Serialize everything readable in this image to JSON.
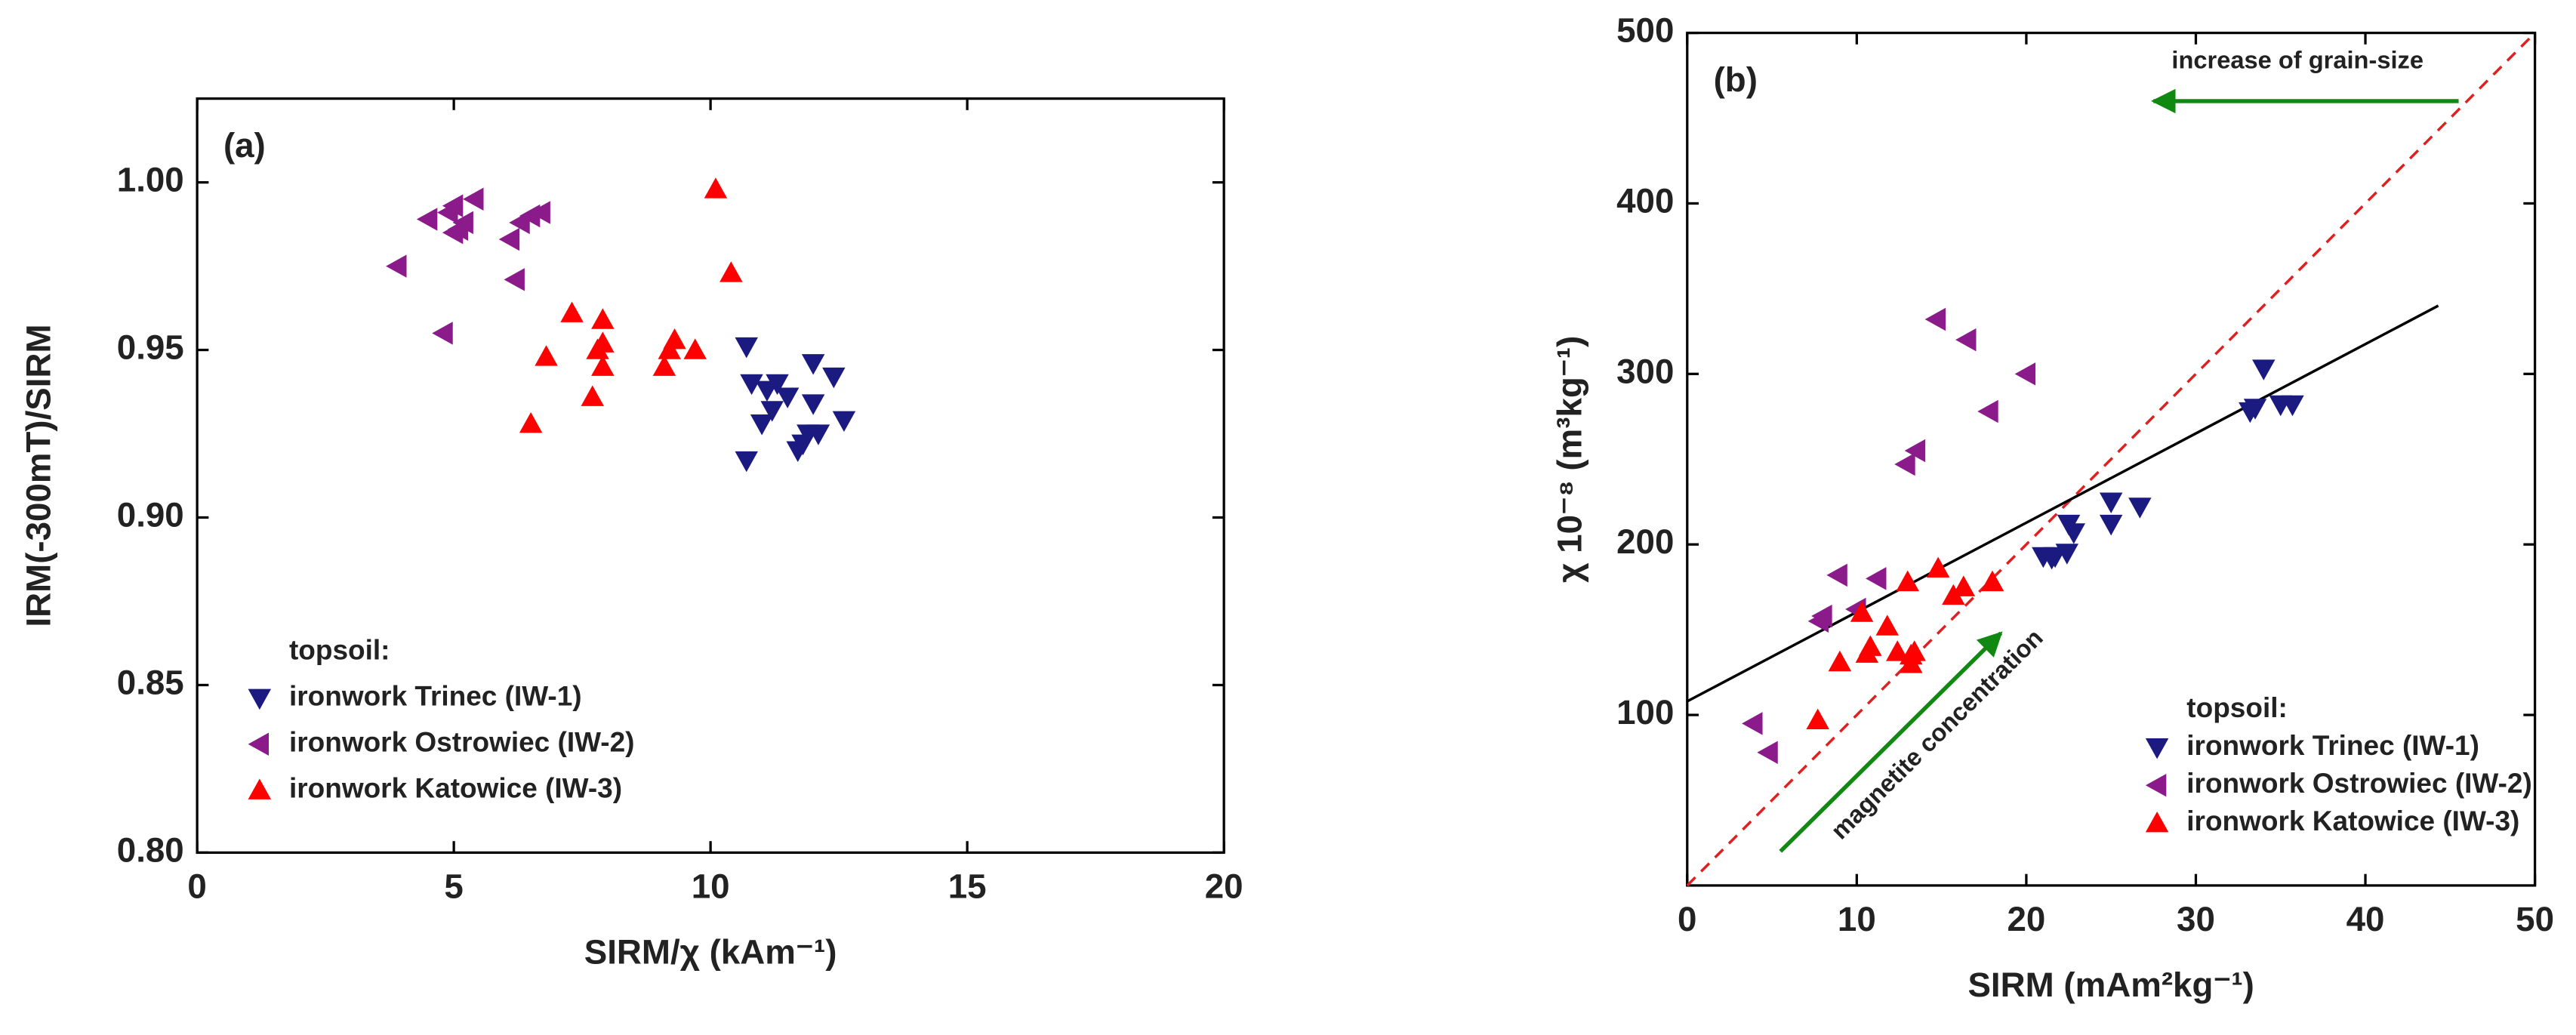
{
  "chart_data": [
    {
      "type": "scatter",
      "panel_label": "(a)",
      "x_label": "SIRM/χ (kAm⁻¹)",
      "y_label": "IRM(-300mT)/SIRM",
      "xlim": [
        0,
        20
      ],
      "ylim": [
        0.8,
        1.025
      ],
      "xticks": [
        0,
        5,
        10,
        15,
        20
      ],
      "yticks": [
        {
          "value": 0.8,
          "label": "0.80"
        },
        {
          "value": 0.85,
          "label": "0.85"
        },
        {
          "value": 0.9,
          "label": "0.90"
        },
        {
          "value": 0.95,
          "label": "0.95"
        },
        {
          "value": 1.0,
          "label": "1.00"
        }
      ],
      "legend_title": "topsoil:",
      "legend": "lower left",
      "series": [
        {
          "name": "ironwork Trinec (IW-1)",
          "color": "#1a1a80",
          "marker": "triangle-down",
          "x": [
            10.7,
            10.8,
            10.7,
            11.1,
            11.2,
            11.3,
            11.5,
            11.0,
            11.8,
            11.9,
            12.0,
            12.0,
            12.4,
            12.6,
            11.7,
            12.1
          ],
          "values": [
            0.951,
            0.94,
            0.917,
            0.938,
            0.932,
            0.94,
            0.936,
            0.928,
            0.922,
            0.925,
            0.946,
            0.934,
            0.942,
            0.929,
            0.92,
            0.925
          ]
        },
        {
          "name": "ironwork Ostrowiec (IW-2)",
          "color": "#8b1a8b",
          "marker": "triangle-left",
          "x": [
            3.9,
            4.5,
            4.8,
            4.9,
            5.0,
            5.1,
            5.2,
            5.4,
            6.1,
            6.2,
            6.3,
            6.5,
            6.7,
            5.0
          ],
          "values": [
            0.975,
            0.989,
            0.955,
            0.991,
            0.993,
            0.986,
            0.988,
            0.995,
            0.983,
            0.971,
            0.988,
            0.99,
            0.991,
            0.985
          ]
        },
        {
          "name": "ironwork Katowice (IW-3)",
          "color": "#ff0000",
          "marker": "triangle-up",
          "x": [
            6.5,
            6.8,
            7.3,
            7.7,
            7.8,
            7.9,
            7.9,
            7.9,
            9.1,
            9.2,
            9.3,
            9.7,
            10.1,
            10.4
          ],
          "values": [
            0.928,
            0.948,
            0.961,
            0.936,
            0.95,
            0.959,
            0.945,
            0.952,
            0.945,
            0.95,
            0.953,
            0.95,
            0.998,
            0.973
          ]
        }
      ]
    },
    {
      "type": "scatter",
      "panel_label": "(b)",
      "x_label": "SIRM (mAm²kg⁻¹)",
      "y_label": "χ 10⁻⁸ (m³kg⁻¹)",
      "xlim": [
        0,
        50
      ],
      "ylim": [
        0,
        500
      ],
      "xticks": [
        0,
        10,
        20,
        30,
        40,
        50
      ],
      "yticks": [
        100,
        200,
        300,
        400,
        500
      ],
      "legend_title": "topsoil:",
      "legend": "lower right",
      "fit_line": {
        "color": "#000000",
        "x": [
          0,
          44.3
        ],
        "values": [
          108,
          340
        ]
      },
      "reference_line": {
        "color": "#e02020",
        "x": [
          0,
          50
        ],
        "values": [
          0,
          500
        ]
      },
      "annotations": [
        {
          "text": "increase of grain-size",
          "color": "#118811"
        },
        {
          "text": "magnetite concentration",
          "color": "#118811"
        }
      ],
      "series": [
        {
          "name": "ironwork Trinec (IW-1)",
          "color": "#1a1a80",
          "marker": "triangle-down",
          "x": [
            33.2,
            33.5,
            34,
            35,
            35.7,
            25,
            25,
            26.7,
            22.5,
            22.8,
            21,
            21.7,
            22.4,
            21.5
          ],
          "values": [
            278,
            280,
            303,
            282,
            282,
            225,
            212,
            222,
            212,
            207,
            193,
            193,
            195,
            192
          ]
        },
        {
          "name": "ironwork Ostrowiec (IW-2)",
          "color": "#8b1a8b",
          "marker": "triangle-left",
          "x": [
            3.9,
            4.8,
            7.8,
            8,
            8.9,
            10,
            11.2,
            12.9,
            13.5,
            14.7,
            16.5,
            17.8,
            20
          ],
          "values": [
            95,
            78,
            155,
            158,
            182,
            162,
            180,
            247,
            255,
            332,
            320,
            278,
            300
          ]
        },
        {
          "name": "ironwork Katowice (IW-3)",
          "color": "#ff0000",
          "marker": "triangle-up",
          "x": [
            7.7,
            9,
            10.3,
            10.6,
            10.8,
            11.8,
            12.4,
            13,
            13.2,
            13.2,
            14.8,
            15.7,
            16.3,
            18,
            13.4
          ],
          "values": [
            97,
            131,
            160,
            136,
            140,
            152,
            137,
            178,
            130,
            135,
            186,
            170,
            175,
            178,
            137
          ]
        }
      ]
    }
  ]
}
